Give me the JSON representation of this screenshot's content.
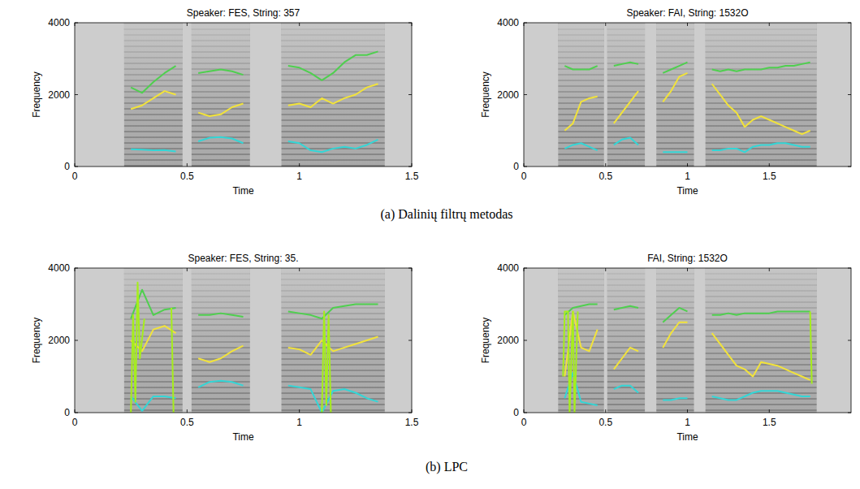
{
  "chart_data": [
    {
      "type": "line",
      "title": "Speaker: FES,  String: 357",
      "x_label": "Time",
      "y_label": "Frequency",
      "xlim": [
        0,
        1.5
      ],
      "xticks": [
        0,
        0.5,
        1,
        1.5
      ],
      "ylim": [
        0,
        4000
      ],
      "yticks": [
        0,
        2000,
        4000
      ],
      "x": [
        0.25,
        0.3,
        0.35,
        0.4,
        0.45,
        0.5,
        0.55,
        0.6,
        0.65,
        0.7,
        0.75,
        0.8,
        0.85,
        0.9,
        0.95,
        1.0,
        1.05,
        1.1,
        1.15,
        1.2,
        1.25,
        1.3,
        1.35
      ],
      "series": [
        {
          "color": "#33d6d6",
          "values": [
            480,
            470,
            450,
            460,
            420,
            null,
            700,
            800,
            820,
            780,
            650,
            null,
            null,
            null,
            700,
            650,
            450,
            400,
            500,
            550,
            500,
            600,
            750
          ]
        },
        {
          "color": "#f2e33a",
          "values": [
            1600,
            1700,
            1900,
            2100,
            2000,
            null,
            1500,
            1400,
            1450,
            1650,
            1750,
            null,
            null,
            null,
            1700,
            1750,
            1650,
            1900,
            1750,
            1900,
            2000,
            2200,
            2300
          ]
        },
        {
          "color": "#4fcf4f",
          "values": [
            2200,
            2050,
            2350,
            2600,
            2800,
            null,
            2600,
            2650,
            2700,
            2650,
            2550,
            null,
            null,
            null,
            2800,
            2750,
            2600,
            2400,
            2600,
            2900,
            3100,
            3100,
            3200
          ]
        }
      ]
    },
    {
      "type": "line",
      "title": "Speaker: FAI,  String: 1532O",
      "x_label": "Time",
      "y_label": "Frequency",
      "xlim": [
        0,
        2
      ],
      "xticks": [
        0,
        0.5,
        1,
        1.5
      ],
      "ylim": [
        0,
        4000
      ],
      "yticks": [
        0,
        2000,
        4000
      ],
      "x": [
        0.25,
        0.3,
        0.35,
        0.4,
        0.45,
        0.5,
        0.55,
        0.6,
        0.65,
        0.7,
        0.75,
        0.8,
        0.85,
        0.9,
        0.95,
        1.0,
        1.05,
        1.1,
        1.15,
        1.2,
        1.25,
        1.3,
        1.35,
        1.4,
        1.45,
        1.5,
        1.55,
        1.6,
        1.65,
        1.7,
        1.75
      ],
      "series": [
        {
          "color": "#33d6d6",
          "values": [
            500,
            600,
            650,
            550,
            450,
            null,
            600,
            750,
            800,
            600,
            null,
            null,
            400,
            400,
            400,
            400,
            null,
            null,
            450,
            450,
            500,
            500,
            400,
            550,
            600,
            600,
            650,
            650,
            600,
            550,
            550
          ]
        },
        {
          "color": "#f2e33a",
          "values": [
            1000,
            1200,
            1800,
            1900,
            1950,
            null,
            1200,
            1500,
            1800,
            2100,
            null,
            null,
            1800,
            2100,
            2500,
            2600,
            null,
            null,
            2300,
            2000,
            1700,
            1500,
            1100,
            1300,
            1400,
            1300,
            1200,
            1100,
            1000,
            900,
            1000
          ]
        },
        {
          "color": "#4fcf4f",
          "values": [
            2800,
            2700,
            2700,
            2700,
            2800,
            null,
            2800,
            2850,
            2900,
            2850,
            null,
            null,
            2600,
            2700,
            2800,
            2900,
            null,
            null,
            2700,
            2650,
            2700,
            2650,
            2700,
            2700,
            2700,
            2750,
            2750,
            2800,
            2800,
            2850,
            2900
          ]
        }
      ]
    },
    {
      "type": "line",
      "title": "Speaker: FES, String: 35.",
      "x_label": "Time",
      "y_label": "Frequency",
      "xlim": [
        0,
        1.5
      ],
      "xticks": [
        0,
        0.5,
        1,
        1.5
      ],
      "ylim": [
        0,
        4000
      ],
      "yticks": [
        0,
        2000,
        4000
      ],
      "x": [
        0.25,
        0.3,
        0.35,
        0.4,
        0.45,
        0.5,
        0.55,
        0.6,
        0.65,
        0.7,
        0.75,
        0.8,
        0.85,
        0.9,
        0.95,
        1.0,
        1.05,
        1.1,
        1.15,
        1.2,
        1.25,
        1.3,
        1.35
      ],
      "series": [
        {
          "color": "#33d6d6",
          "values": [
            450,
            50,
            450,
            450,
            400,
            null,
            700,
            850,
            880,
            850,
            750,
            null,
            null,
            null,
            750,
            700,
            650,
            0,
            600,
            650,
            550,
            400,
            300
          ]
        },
        {
          "color": "#f2e33a",
          "values": [
            2000,
            1700,
            2300,
            2400,
            2200,
            null,
            1500,
            1400,
            1500,
            1700,
            1850,
            null,
            null,
            null,
            1800,
            1750,
            1600,
            2000,
            1700,
            1800,
            1900,
            2000,
            2100
          ]
        },
        {
          "color": "#4fcf4f",
          "values": [
            2600,
            3400,
            2700,
            2850,
            2900,
            null,
            2700,
            2700,
            2750,
            2700,
            2650,
            null,
            null,
            null,
            2800,
            2750,
            2700,
            2600,
            2900,
            2950,
            3000,
            3000,
            3000
          ]
        },
        {
          "color": "#a6ee1c",
          "x": [
            0.25,
            0.26,
            0.27,
            0.28,
            0.29,
            0.31,
            0.37,
            0.43,
            0.44,
            0.77,
            1.1,
            1.11,
            1.12,
            1.13,
            1.14
          ],
          "values": [
            0,
            2700,
            300,
            3600,
            1500,
            2600,
            null,
            2900,
            0,
            null,
            0,
            2800,
            200,
            2700,
            0
          ]
        }
      ]
    },
    {
      "type": "line",
      "title": "FAI, String: 1532O",
      "x_label": "Time",
      "y_label": "Frequency",
      "xlim": [
        0,
        2
      ],
      "xticks": [
        0,
        0.5,
        1,
        1.5
      ],
      "ylim": [
        0,
        4000
      ],
      "yticks": [
        0,
        2000,
        4000
      ],
      "x": [
        0.25,
        0.3,
        0.35,
        0.4,
        0.45,
        0.5,
        0.55,
        0.6,
        0.65,
        0.7,
        0.75,
        0.8,
        0.85,
        0.9,
        0.95,
        1.0,
        1.05,
        1.1,
        1.15,
        1.2,
        1.25,
        1.3,
        1.35,
        1.4,
        1.45,
        1.5,
        1.55,
        1.6,
        1.65,
        1.7,
        1.75
      ],
      "series": [
        {
          "color": "#33d6d6",
          "values": [
            400,
            1100,
            300,
            250,
            200,
            null,
            650,
            750,
            750,
            550,
            null,
            null,
            350,
            350,
            400,
            400,
            null,
            null,
            450,
            400,
            350,
            350,
            450,
            550,
            600,
            600,
            600,
            550,
            500,
            450,
            450
          ]
        },
        {
          "color": "#f2e33a",
          "values": [
            1000,
            2800,
            1800,
            1700,
            2300,
            null,
            1200,
            1500,
            1800,
            1700,
            null,
            null,
            1800,
            2200,
            2500,
            2500,
            null,
            null,
            2200,
            1900,
            1600,
            1300,
            1200,
            1000,
            1400,
            1350,
            1300,
            1200,
            1100,
            1000,
            900
          ]
        },
        {
          "color": "#4fcf4f",
          "values": [
            2700,
            2900,
            2950,
            3000,
            3000,
            null,
            2850,
            2900,
            2950,
            2900,
            null,
            null,
            2500,
            2700,
            2900,
            2800,
            null,
            null,
            2700,
            2700,
            2750,
            2700,
            2750,
            2750,
            2750,
            2750,
            2800,
            2800,
            2800,
            2800,
            2800
          ]
        },
        {
          "color": "#a6ee1c",
          "x": [
            0.24,
            0.25,
            0.27,
            0.28,
            0.3,
            0.31,
            0.33,
            1.0,
            1.75,
            1.76
          ],
          "values": [
            1000,
            2800,
            2800,
            0,
            2800,
            0,
            2800,
            null,
            2800,
            800
          ]
        }
      ]
    }
  ],
  "captions": [
    "(a) Dalinių filtrų metodas",
    "(b) LPC"
  ]
}
